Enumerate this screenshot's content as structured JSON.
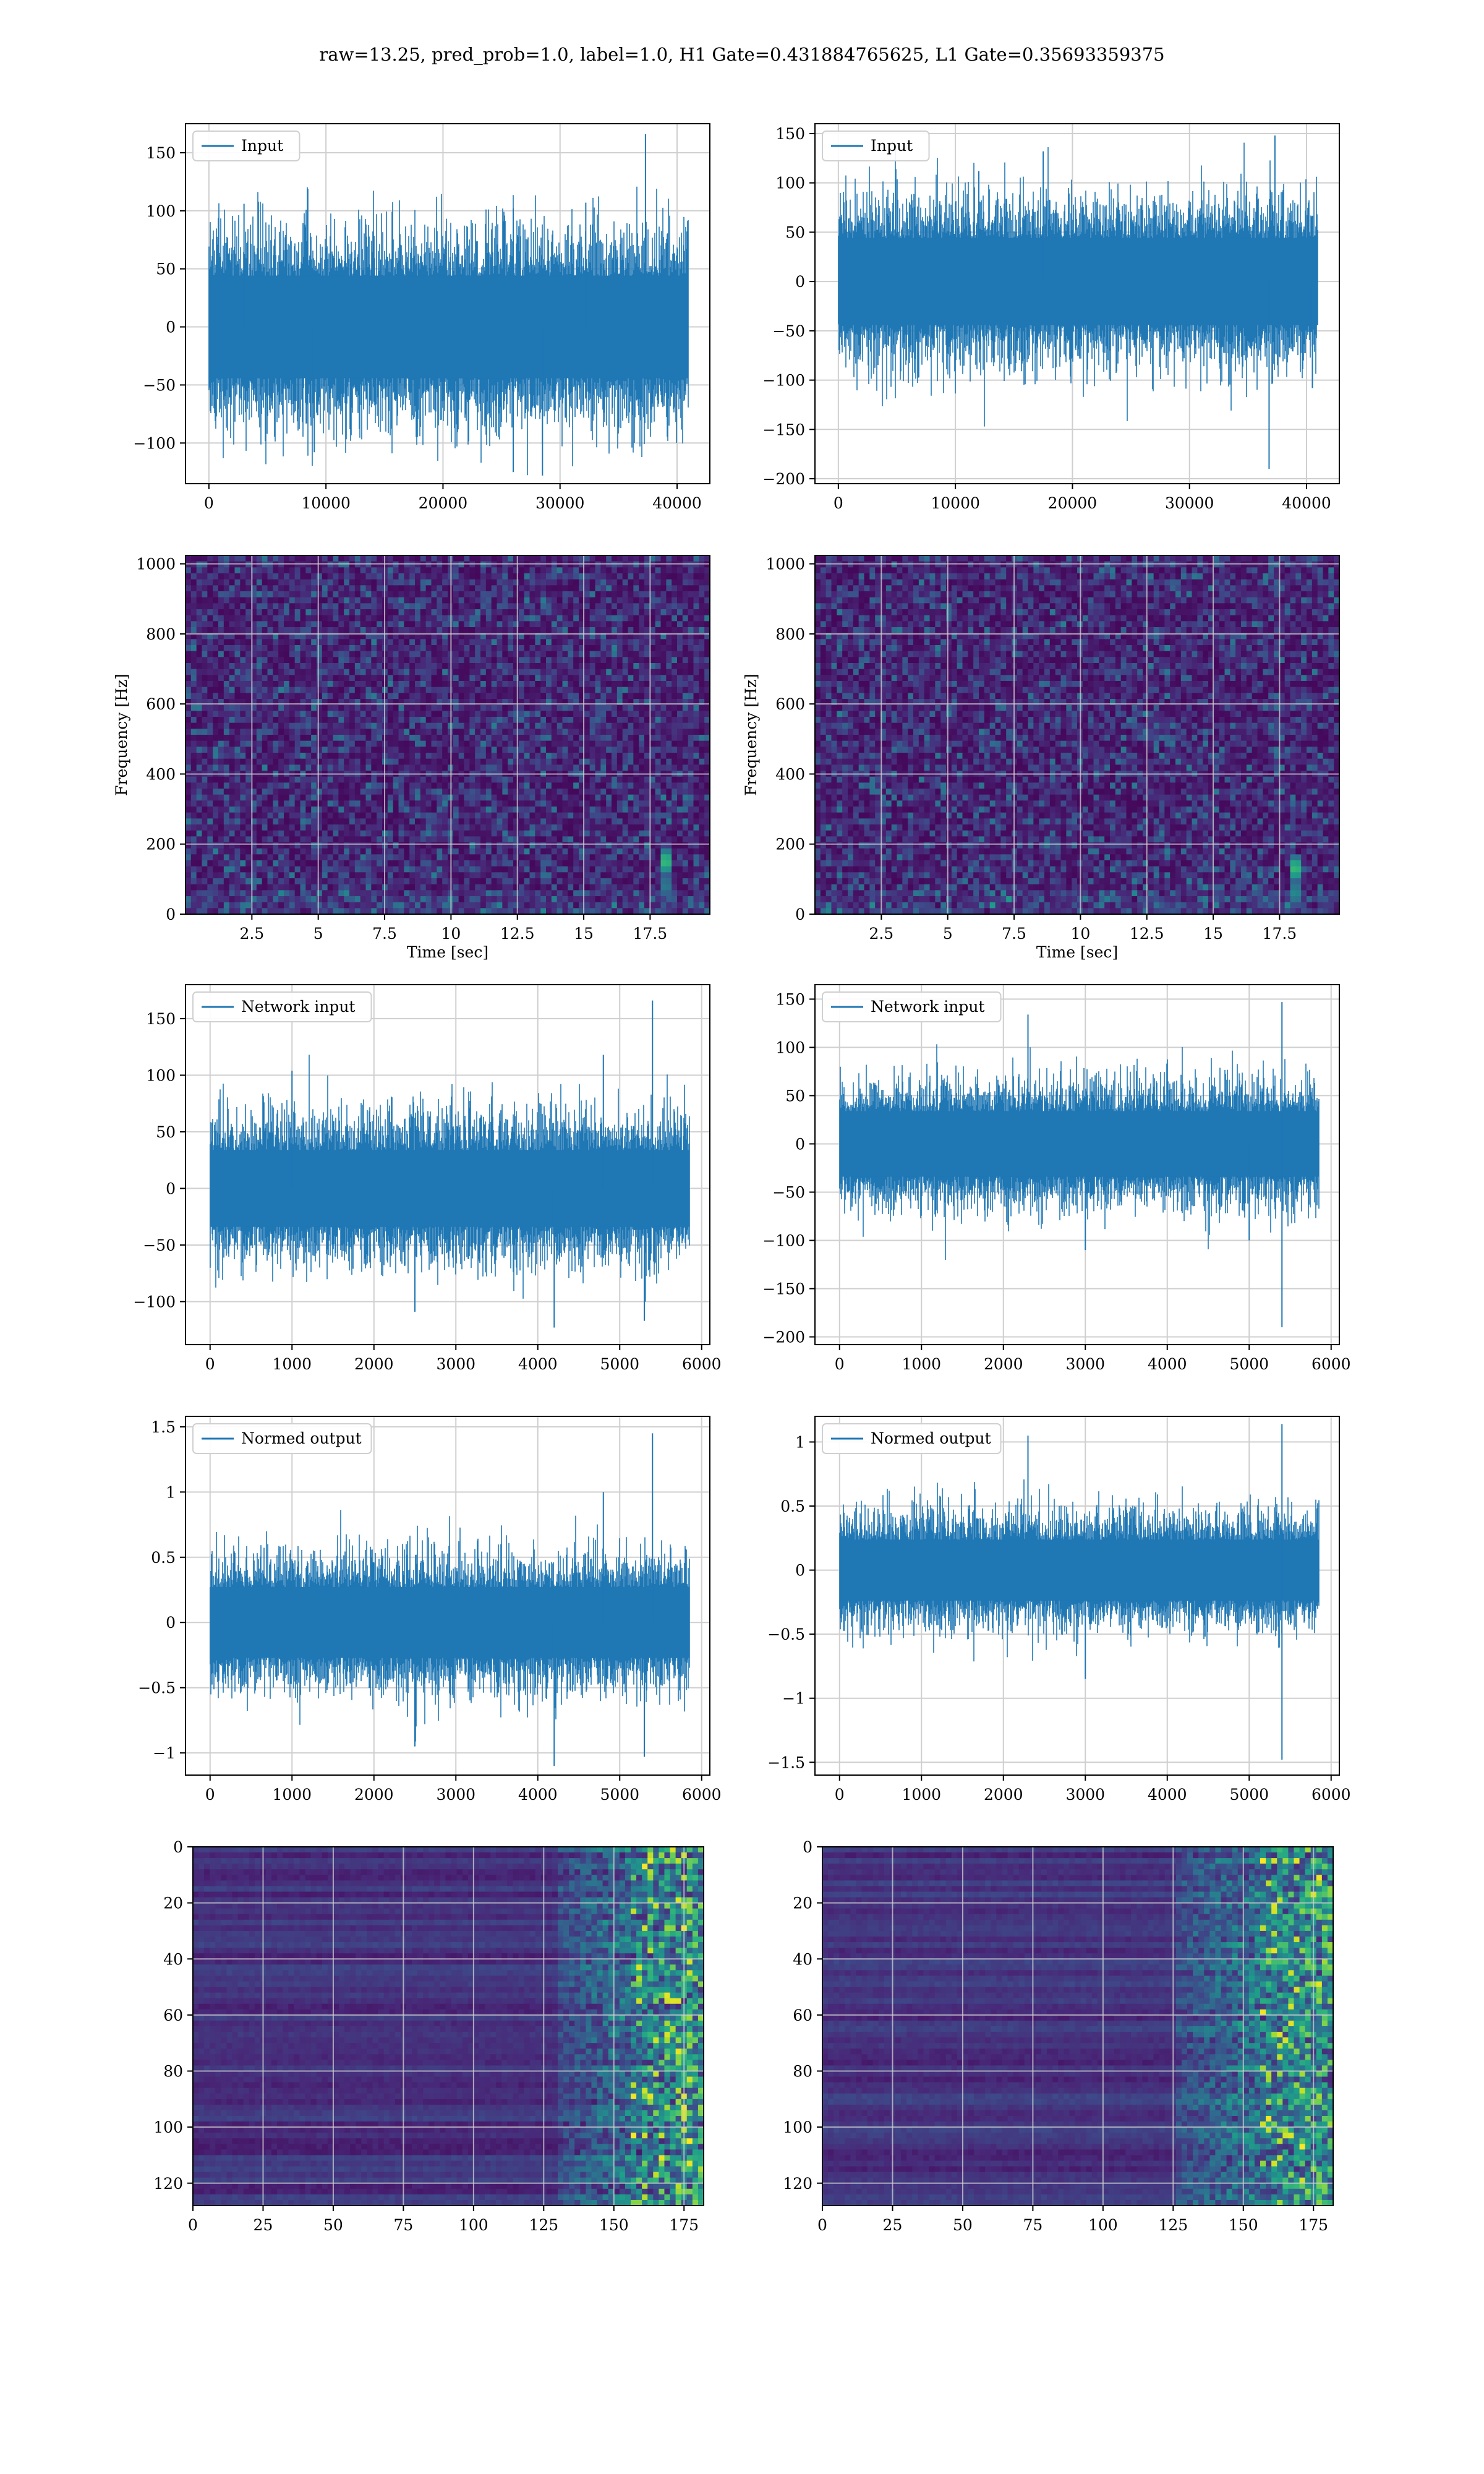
{
  "suptitle": "raw=13.25, pred_prob=1.0, label=1.0, H1 Gate=0.431884765625, L1 Gate=0.35693359375",
  "colors": {
    "line": "#1f77b4",
    "grid": "#cfcfcf",
    "viridis": [
      "#440154",
      "#482878",
      "#3e4989",
      "#31688e",
      "#26828e",
      "#1f9e89",
      "#35b779",
      "#6ece58",
      "#b5de2b",
      "#fde725"
    ]
  },
  "chart_data": [
    {
      "id": "input-h1",
      "type": "line",
      "legend": "Input",
      "xlim": [
        -2000,
        42800
      ],
      "ylim": [
        -135,
        175
      ],
      "xticks": [
        0,
        10000,
        20000,
        30000,
        40000
      ],
      "yticks": [
        -100,
        -50,
        0,
        50,
        100,
        150
      ],
      "x_range": [
        0,
        40960
      ],
      "amplitude": 52,
      "peaks": [
        [
          3000,
          106
        ],
        [
          26000,
          102
        ],
        [
          32200,
          107
        ],
        [
          37300,
          166
        ],
        [
          9000,
          -108
        ],
        [
          26000,
          -125
        ],
        [
          28500,
          -128
        ]
      ]
    },
    {
      "id": "input-l1",
      "type": "line",
      "legend": "Input",
      "xlim": [
        -2000,
        42800
      ],
      "ylim": [
        -205,
        160
      ],
      "xticks": [
        0,
        10000,
        20000,
        30000,
        40000
      ],
      "yticks": [
        -200,
        -150,
        -100,
        -50,
        0,
        50,
        100,
        150
      ],
      "x_range": [
        0,
        40960
      ],
      "amplitude": 52,
      "peaks": [
        [
          17500,
          132
        ],
        [
          37300,
          148
        ],
        [
          12000,
          112
        ],
        [
          36800,
          -190
        ],
        [
          40500,
          -108
        ]
      ]
    },
    {
      "id": "spec-h1",
      "type": "heatmap",
      "xlabel": "Time [sec]",
      "ylabel": "Frequency [Hz]",
      "xlim": [
        0,
        19.75
      ],
      "ylim": [
        0,
        1024
      ],
      "xticks": [
        2.5,
        5.0,
        7.5,
        10.0,
        12.5,
        15.0,
        17.5
      ],
      "yticks": [
        0,
        200,
        400,
        600,
        800,
        1000
      ],
      "hotspots": [
        [
          18.1,
          150,
          1.0
        ],
        [
          18.1,
          80,
          0.6
        ]
      ]
    },
    {
      "id": "spec-l1",
      "type": "heatmap",
      "xlabel": "Time [sec]",
      "ylabel": "Frequency [Hz]",
      "xlim": [
        0,
        19.75
      ],
      "ylim": [
        0,
        1024
      ],
      "xticks": [
        2.5,
        5.0,
        7.5,
        10.0,
        12.5,
        15.0,
        17.5
      ],
      "yticks": [
        0,
        200,
        400,
        600,
        800,
        1000
      ],
      "hotspots": [
        [
          18.1,
          130,
          1.0
        ],
        [
          18.1,
          60,
          0.7
        ]
      ]
    },
    {
      "id": "net-h1",
      "type": "line",
      "legend": "Network input",
      "xlim": [
        -300,
        6100
      ],
      "ylim": [
        -138,
        180
      ],
      "xticks": [
        0,
        1000,
        2000,
        3000,
        4000,
        5000,
        6000
      ],
      "yticks": [
        -100,
        -50,
        0,
        50,
        100,
        150
      ],
      "x_range": [
        0,
        5850
      ],
      "amplitude": 40,
      "peaks": [
        [
          5400,
          166
        ],
        [
          4800,
          118
        ],
        [
          1000,
          104
        ],
        [
          4200,
          -123
        ],
        [
          5300,
          -117
        ],
        [
          2500,
          -109
        ]
      ]
    },
    {
      "id": "net-l1",
      "type": "line",
      "legend": "Network input",
      "xlim": [
        -300,
        6100
      ],
      "ylim": [
        -208,
        165
      ],
      "xticks": [
        0,
        1000,
        2000,
        3000,
        4000,
        5000,
        6000
      ],
      "yticks": [
        -200,
        -150,
        -100,
        -50,
        0,
        50,
        100,
        150
      ],
      "x_range": [
        0,
        5850
      ],
      "amplitude": 40,
      "peaks": [
        [
          2300,
          134
        ],
        [
          5400,
          147
        ],
        [
          5400,
          -190
        ],
        [
          3000,
          -110
        ],
        [
          5000,
          -100
        ]
      ]
    },
    {
      "id": "norm-h1",
      "type": "line",
      "legend": "Normed output",
      "xlim": [
        -300,
        6100
      ],
      "ylim": [
        -1.17,
        1.58
      ],
      "xticks": [
        0,
        1000,
        2000,
        3000,
        4000,
        5000,
        6000
      ],
      "yticks": [
        -1.0,
        -0.5,
        0.0,
        0.5,
        1.0,
        1.5
      ],
      "x_range": [
        0,
        5850
      ],
      "amplitude": 0.32,
      "peaks": [
        [
          5400,
          1.45
        ],
        [
          4800,
          1.0
        ],
        [
          4200,
          -1.1
        ],
        [
          5300,
          -1.03
        ],
        [
          2500,
          -0.95
        ]
      ]
    },
    {
      "id": "norm-l1",
      "type": "line",
      "legend": "Normed output",
      "xlim": [
        -300,
        6100
      ],
      "ylim": [
        -1.6,
        1.2
      ],
      "xticks": [
        0,
        1000,
        2000,
        3000,
        4000,
        5000,
        6000
      ],
      "yticks": [
        -1.5,
        -1.0,
        -0.5,
        0.0,
        0.5,
        1.0
      ],
      "x_range": [
        0,
        5850
      ],
      "amplitude": 0.28,
      "peaks": [
        [
          2300,
          1.05
        ],
        [
          5400,
          1.14
        ],
        [
          5400,
          -1.48
        ],
        [
          3000,
          -0.85
        ]
      ]
    },
    {
      "id": "feat-h1",
      "type": "heatmap",
      "xlim": [
        0,
        182
      ],
      "ylim": [
        128,
        0
      ],
      "xticks": [
        0,
        25,
        50,
        75,
        100,
        125,
        150,
        175
      ],
      "yticks": [
        0,
        20,
        40,
        60,
        80,
        100,
        120
      ],
      "active_from": 130
    },
    {
      "id": "feat-l1",
      "type": "heatmap",
      "xlim": [
        0,
        182
      ],
      "ylim": [
        128,
        0
      ],
      "xticks": [
        0,
        25,
        50,
        75,
        100,
        125,
        150,
        175
      ],
      "yticks": [
        0,
        20,
        40,
        60,
        80,
        100,
        120
      ],
      "active_from": 125
    }
  ]
}
